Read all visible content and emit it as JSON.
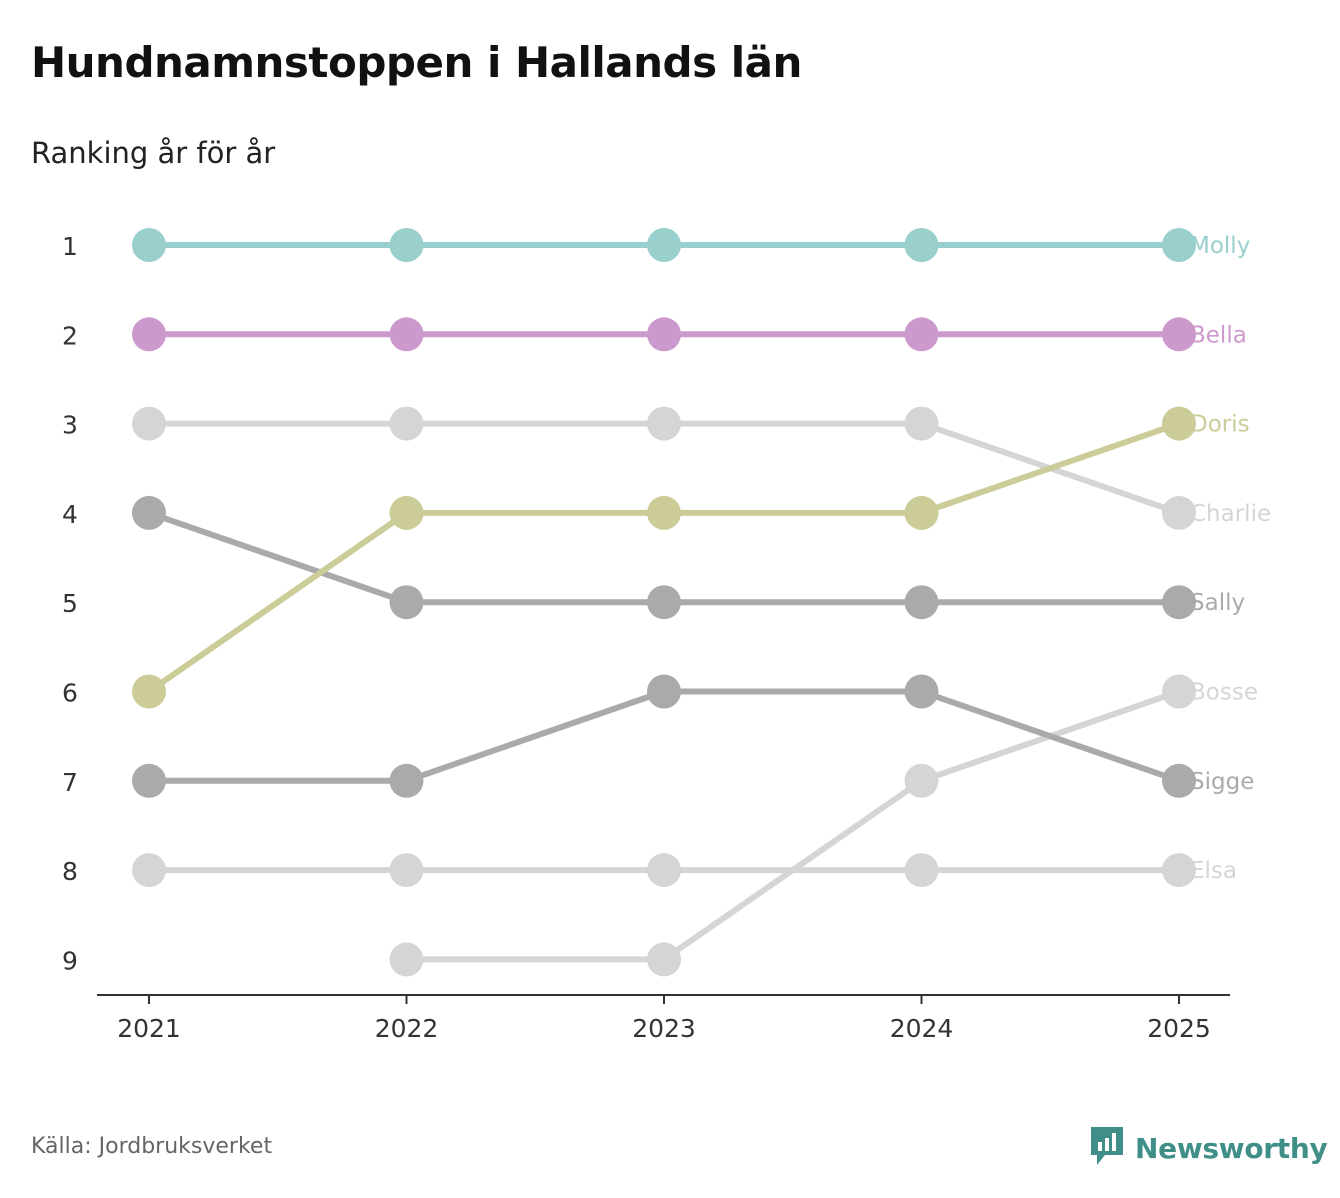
{
  "title": "Hundnamnstoppen i Hallands län",
  "subtitle": "Ranking år för år",
  "source": "Källa: Jordbruksverket",
  "brand": {
    "name": "Newsworthy",
    "icon": "newsworthy-logo-icon",
    "color": "#3f8f88"
  },
  "chart_data": {
    "type": "line",
    "title": "Hundnamnstoppen i Hallands län",
    "subtitle": "Ranking år för år",
    "xlabel": "",
    "ylabel": "",
    "x": [
      "2021",
      "2022",
      "2023",
      "2024",
      "2025"
    ],
    "y_ticks": [
      "1",
      "2",
      "3",
      "4",
      "5",
      "6",
      "7",
      "8",
      "9"
    ],
    "ylim": [
      1,
      9
    ],
    "y_inverted": true,
    "grid": false,
    "legend": "direct labels at right end of lines",
    "series": [
      {
        "name": "Molly",
        "values": [
          1,
          1,
          1,
          1,
          1
        ],
        "color": "#99cfcc"
      },
      {
        "name": "Bella",
        "values": [
          2,
          2,
          2,
          2,
          2
        ],
        "color": "#cc99cc"
      },
      {
        "name": "Doris",
        "values": [
          6,
          4,
          4,
          4,
          3
        ],
        "color": "#cccc99"
      },
      {
        "name": "Charlie",
        "values": [
          3,
          3,
          3,
          3,
          4
        ],
        "color": "#d5d5d5"
      },
      {
        "name": "Sally",
        "values": [
          4,
          5,
          5,
          5,
          5
        ],
        "color": "#aaaaaa"
      },
      {
        "name": "Bosse",
        "values": [
          null,
          9,
          9,
          7,
          6
        ],
        "color": "#d5d5d5"
      },
      {
        "name": "Sigge",
        "values": [
          7,
          7,
          6,
          6,
          7
        ],
        "color": "#aaaaaa"
      },
      {
        "name": "Elsa",
        "values": [
          8,
          8,
          8,
          8,
          8
        ],
        "color": "#d5d5d5"
      }
    ]
  }
}
